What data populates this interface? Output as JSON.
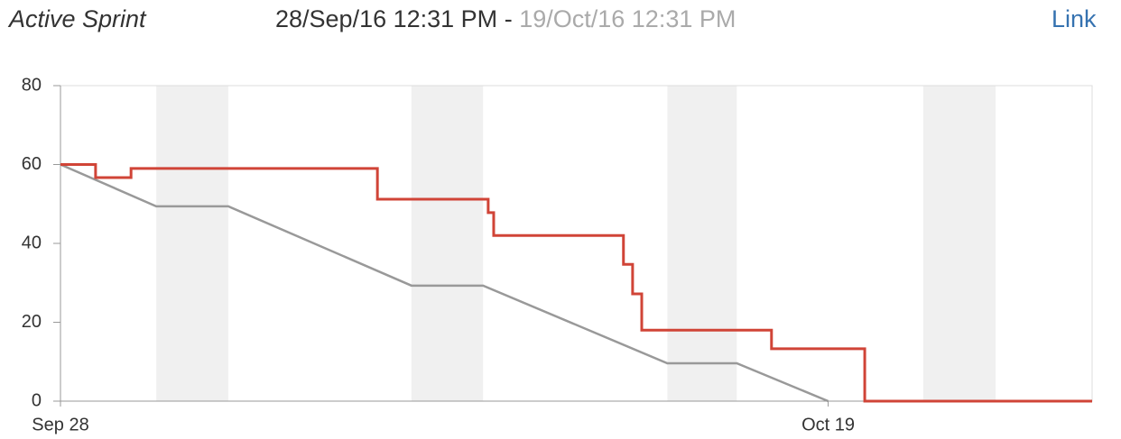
{
  "header": {
    "title": "Active Sprint",
    "start": "28/Sep/16 12:31 PM",
    "separator": "-",
    "end": "19/Oct/16 12:31 PM",
    "link": "Link"
  },
  "chart_data": {
    "type": "line",
    "xlim": [
      0,
      28.22
    ],
    "ylim": [
      0,
      80
    ],
    "xticks": [
      {
        "value": 0,
        "label": "Sep 28"
      },
      {
        "value": 21,
        "label": "Oct 19"
      }
    ],
    "yticks": [
      0,
      20,
      40,
      60,
      80
    ],
    "nonworking": [
      [
        2.62,
        4.59
      ],
      [
        9.6,
        11.56
      ],
      [
        16.6,
        18.5
      ],
      [
        23.6,
        25.58
      ]
    ],
    "nonworking_color": "#f0f0f0",
    "series": [
      {
        "color": "#999999",
        "step": false,
        "x": [
          0,
          2.62,
          4.59,
          9.6,
          11.56,
          16.6,
          18.5,
          21
        ],
        "values": [
          60,
          49.4,
          49.4,
          29.3,
          29.3,
          9.6,
          9.6,
          0
        ]
      },
      {
        "color": "#d04437",
        "step": true,
        "x": [
          0,
          0.96,
          1.93,
          8.67,
          11.7,
          11.85,
          15.4,
          15.65,
          15.9,
          19.45,
          22,
          28.22
        ],
        "values": [
          60,
          56.7,
          59,
          51.2,
          47.8,
          42,
          34.7,
          27.2,
          18,
          13.3,
          0,
          0
        ]
      }
    ]
  }
}
